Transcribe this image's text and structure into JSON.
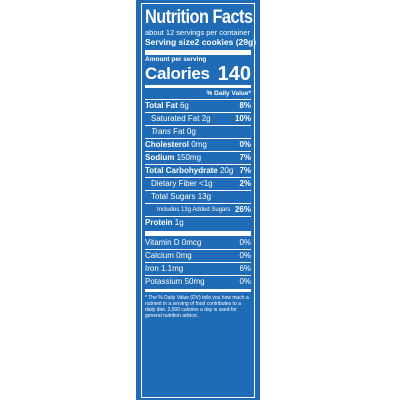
{
  "label": {
    "title": "Nutrition Facts",
    "servings_per_container": "about 12 servings per container",
    "serving_size_label": "Serving size",
    "serving_size_value": "2 cookies (29g)",
    "amount_per_serving": "Amount per serving",
    "calories_label": "Calories",
    "calories_value": "140",
    "daily_value_header": "% Daily Value*"
  },
  "nutrients": {
    "total_fat": {
      "name": "Total Fat",
      "amount": "6g",
      "dv": "8%"
    },
    "saturated_fat": {
      "name": "Saturated Fat",
      "amount": "2g",
      "dv": "10%"
    },
    "trans_fat": {
      "prefix": "Trans",
      "name": "Fat",
      "amount": "0g"
    },
    "cholesterol": {
      "name": "Cholesterol",
      "amount": "0mg",
      "dv": "0%"
    },
    "sodium": {
      "name": "Sodium",
      "amount": "150mg",
      "dv": "7%"
    },
    "total_carbohydrate": {
      "name": "Total Carbohydrate",
      "amount": "20g",
      "dv": "7%"
    },
    "dietary_fiber": {
      "name": "Dietary Fiber",
      "amount": "<1g",
      "dv": "2%"
    },
    "total_sugars": {
      "name": "Total Sugars",
      "amount": "13g"
    },
    "added_sugars": {
      "text": "Includes 13g Added Sugars",
      "dv": "26%"
    },
    "protein": {
      "name": "Protein",
      "amount": "1g"
    }
  },
  "vitamins": [
    {
      "text": "Vitamin D 0mcg",
      "dv": "0%"
    },
    {
      "text": "Calcium 0mg",
      "dv": "0%"
    },
    {
      "text": "Iron 1.1mg",
      "dv": "6%"
    },
    {
      "text": "Potassium 50mg",
      "dv": "0%"
    }
  ],
  "footnote": "* The % Daily Value (DV) tells you how much a nutrient in a serving of food contributes to a daily diet. 2,000 calories a day is used for general nutrition advice.",
  "colors": {
    "panel": "#1f6bb5",
    "text": "#ffffff"
  }
}
